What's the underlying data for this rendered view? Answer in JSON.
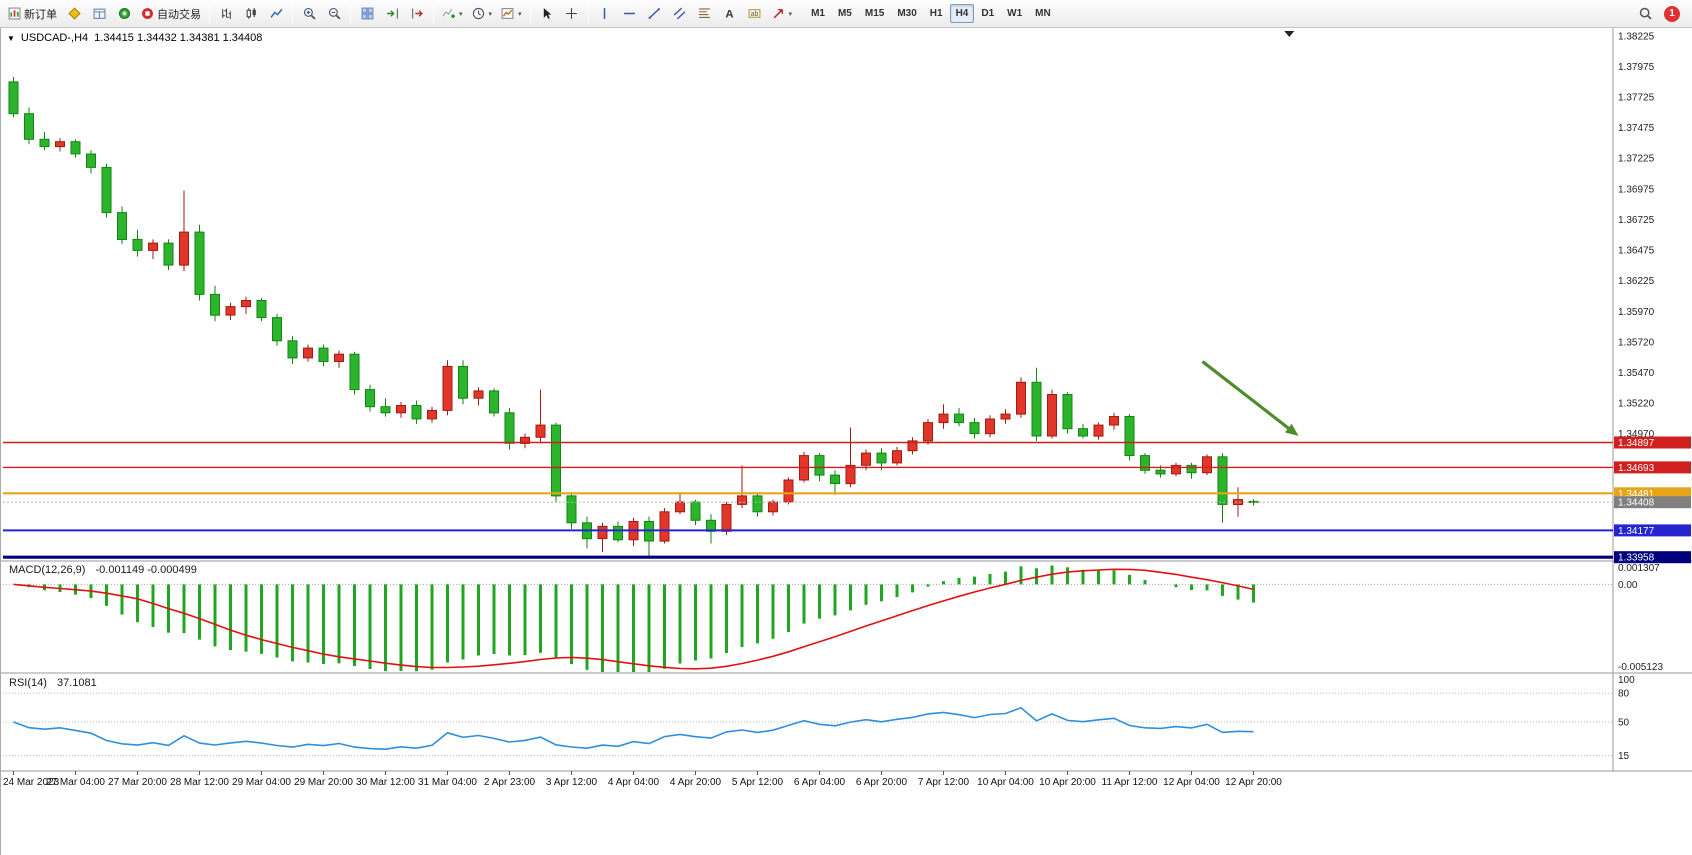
{
  "toolbar": {
    "items": [
      {
        "name": "new-order-button",
        "icon": "new-order",
        "label": "新订单"
      },
      {
        "name": "market-watch-button",
        "icon": "market-watch"
      },
      {
        "name": "data-window-button",
        "icon": "data-window"
      },
      {
        "name": "market-button",
        "icon": "market"
      },
      {
        "name": "autotrading-button",
        "icon": "autotrading",
        "label": "自动交易"
      },
      {
        "type": "sep"
      },
      {
        "name": "bars-button",
        "icon": "bars"
      },
      {
        "name": "candles-button",
        "icon": "candles"
      },
      {
        "name": "line-chart-button",
        "icon": "line-chart"
      },
      {
        "type": "sep"
      },
      {
        "name": "zoom-in-button",
        "icon": "zoom-in"
      },
      {
        "name": "zoom-out-button",
        "icon": "zoom-out"
      },
      {
        "type": "sep"
      },
      {
        "name": "tile-windows-button",
        "icon": "tile-windows"
      },
      {
        "name": "auto-scroll-button",
        "icon": "auto-scroll"
      },
      {
        "name": "chart-shift-button",
        "icon": "chart-shift"
      },
      {
        "type": "sep"
      },
      {
        "name": "indicators-button",
        "icon": "indicators",
        "caret": true
      },
      {
        "name": "periods-button",
        "icon": "periods",
        "caret": true
      },
      {
        "name": "templates-button",
        "icon": "templates",
        "caret": true
      },
      {
        "type": "sep"
      },
      {
        "name": "cursor-button",
        "icon": "cursor"
      },
      {
        "name": "crosshair-button",
        "icon": "crosshair"
      },
      {
        "type": "sep"
      },
      {
        "name": "vertical-line-button",
        "icon": "vline"
      },
      {
        "name": "horizontal-line-button",
        "icon": "hline"
      },
      {
        "name": "trendline-button",
        "icon": "trendline"
      },
      {
        "name": "channel-button",
        "icon": "channel"
      },
      {
        "name": "fibonacci-button",
        "icon": "fibonacci"
      },
      {
        "name": "text-button",
        "icon": "text"
      },
      {
        "name": "text-label-button",
        "icon": "text-label"
      },
      {
        "name": "arrows-button",
        "icon": "arrows",
        "caret": true
      }
    ],
    "timeframes": [
      "M1",
      "M5",
      "M15",
      "M30",
      "H1",
      "H4",
      "D1",
      "W1",
      "MN"
    ],
    "active_timeframe": "H4",
    "notification_count": "1"
  },
  "window": {
    "symbol_title": "USDCAD-,H4",
    "ohlc_text": "1.34415 1.34432 1.34381 1.34408"
  },
  "chart_data": {
    "type": "candlestick",
    "symbol": "USDCAD",
    "period": "H4",
    "price_axis": {
      "top": 1.38275,
      "bottom": 1.33935,
      "ticks": [
        [
          "1.38225",
          1.38225
        ],
        [
          "1.37975",
          1.37975
        ],
        [
          "1.37725",
          1.37725
        ],
        [
          "1.37475",
          1.37475
        ],
        [
          "1.37225",
          1.37225
        ],
        [
          "1.36975",
          1.36975
        ],
        [
          "1.36725",
          1.36725
        ],
        [
          "1.36475",
          1.36475
        ],
        [
          "1.36225",
          1.36225
        ],
        [
          "1.35970",
          1.3597
        ],
        [
          "1.35720",
          1.3572
        ],
        [
          "1.35470",
          1.3547
        ],
        [
          "1.35220",
          1.3522
        ],
        [
          "1.34970",
          1.3497
        ]
      ]
    },
    "levels": [
      {
        "text": "1.34897",
        "value": 1.34897,
        "color": "#cf1f1f",
        "label_bg": "#cf1f1f",
        "w": 1.4
      },
      {
        "text": "1.34693",
        "value": 1.34693,
        "color": "#cf1f1f",
        "label_bg": "#cf1f1f",
        "w": 1.4
      },
      {
        "text": "1.34481",
        "value": 1.34481,
        "color": "#e7a519",
        "label_bg": "#e7a519",
        "w": 2.2
      },
      {
        "text": "1.34408",
        "value": 1.34408,
        "color": "#b4b4b4",
        "label_bg": "#808080",
        "w": 1,
        "dash": "2,2"
      },
      {
        "text": "1.34177",
        "value": 1.34177,
        "color": "#2525cf",
        "label_bg": "#2525cf",
        "w": 2
      },
      {
        "text": "1.33958",
        "value": 1.33958,
        "color": "#00007f",
        "label_bg": "#00007f",
        "w": 3.2
      }
    ],
    "time_labels": [
      "24 Mar 2023",
      "27 Mar 04:00",
      "27 Mar 20:00",
      "28 Mar 12:00",
      "29 Mar 04:00",
      "29 Mar 20:00",
      "30 Mar 12:00",
      "31 Mar 04:00",
      "2 Apr 23:00",
      "3 Apr 12:00",
      "4 Apr 04:00",
      "4 Apr 20:00",
      "5 Apr 12:00",
      "6 Apr 04:00",
      "6 Apr 20:00",
      "7 Apr 12:00",
      "10 Apr 04:00",
      "10 Apr 20:00",
      "11 Apr 12:00",
      "12 Apr 04:00",
      "12 Apr 20:00"
    ],
    "colors": {
      "up": "#e3362a",
      "up_stroke": "#a01b10",
      "down": "#2cb52c",
      "down_stroke": "#118611"
    },
    "candles": [
      [
        1.3785,
        1.3789,
        1.3756,
        1.3759
      ],
      [
        1.3759,
        1.3764,
        1.3734,
        1.3738
      ],
      [
        1.3738,
        1.3744,
        1.3729,
        1.3732
      ],
      [
        1.3732,
        1.3739,
        1.3728,
        1.3736
      ],
      [
        1.3736,
        1.3738,
        1.3723,
        1.3726
      ],
      [
        1.3726,
        1.3729,
        1.371,
        1.3715
      ],
      [
        1.3715,
        1.3718,
        1.3674,
        1.3678
      ],
      [
        1.3678,
        1.3683,
        1.3652,
        1.3656
      ],
      [
        1.3656,
        1.3664,
        1.3642,
        1.3647
      ],
      [
        1.3647,
        1.3656,
        1.364,
        1.3653
      ],
      [
        1.3653,
        1.3656,
        1.3631,
        1.3635
      ],
      [
        1.3635,
        1.3696,
        1.363,
        1.3662
      ],
      [
        1.3662,
        1.3668,
        1.3606,
        1.3611
      ],
      [
        1.3611,
        1.3618,
        1.3589,
        1.3594
      ],
      [
        1.3594,
        1.3604,
        1.359,
        1.3601
      ],
      [
        1.3601,
        1.3609,
        1.3595,
        1.3606
      ],
      [
        1.3606,
        1.3608,
        1.3589,
        1.3592
      ],
      [
        1.3592,
        1.3595,
        1.3569,
        1.3573
      ],
      [
        1.3573,
        1.3577,
        1.3554,
        1.3559
      ],
      [
        1.3559,
        1.357,
        1.3556,
        1.3567
      ],
      [
        1.3567,
        1.357,
        1.3552,
        1.3556
      ],
      [
        1.3556,
        1.3565,
        1.3551,
        1.3562
      ],
      [
        1.3562,
        1.3564,
        1.3529,
        1.3533
      ],
      [
        1.3533,
        1.3537,
        1.3515,
        1.3519
      ],
      [
        1.3519,
        1.3526,
        1.3511,
        1.3514
      ],
      [
        1.3514,
        1.3523,
        1.351,
        1.352
      ],
      [
        1.352,
        1.3524,
        1.3505,
        1.3509
      ],
      [
        1.3509,
        1.3519,
        1.3506,
        1.3516
      ],
      [
        1.3516,
        1.3557,
        1.3512,
        1.3552
      ],
      [
        1.3552,
        1.3557,
        1.3521,
        1.3526
      ],
      [
        1.3526,
        1.3535,
        1.352,
        1.3532
      ],
      [
        1.3532,
        1.3534,
        1.3511,
        1.3514
      ],
      [
        1.3514,
        1.3518,
        1.3484,
        1.3489
      ],
      [
        1.3489,
        1.3497,
        1.3485,
        1.3494
      ],
      [
        1.3494,
        1.3533,
        1.3489,
        1.3504
      ],
      [
        1.3504,
        1.3506,
        1.3441,
        1.3446
      ],
      [
        1.3446,
        1.3448,
        1.3419,
        1.3424
      ],
      [
        1.3424,
        1.3429,
        1.3403,
        1.3411
      ],
      [
        1.3411,
        1.3424,
        1.34,
        1.3421
      ],
      [
        1.3421,
        1.3425,
        1.3408,
        1.341
      ],
      [
        1.341,
        1.3428,
        1.3405,
        1.3425
      ],
      [
        1.3425,
        1.3429,
        1.3397,
        1.3409
      ],
      [
        1.3409,
        1.3436,
        1.3407,
        1.3433
      ],
      [
        1.3433,
        1.3449,
        1.3431,
        1.3441
      ],
      [
        1.3441,
        1.3443,
        1.3422,
        1.3426
      ],
      [
        1.3426,
        1.3431,
        1.3407,
        1.3417
      ],
      [
        1.3417,
        1.3441,
        1.3414,
        1.3439
      ],
      [
        1.3439,
        1.3471,
        1.3436,
        1.3446
      ],
      [
        1.3446,
        1.3448,
        1.3429,
        1.3433
      ],
      [
        1.3433,
        1.3443,
        1.343,
        1.3441
      ],
      [
        1.3441,
        1.3461,
        1.3439,
        1.3459
      ],
      [
        1.3459,
        1.3482,
        1.3457,
        1.3479
      ],
      [
        1.3479,
        1.3481,
        1.3458,
        1.3463
      ],
      [
        1.3463,
        1.3467,
        1.3447,
        1.3456
      ],
      [
        1.3456,
        1.3502,
        1.3453,
        1.3471
      ],
      [
        1.3471,
        1.3484,
        1.3467,
        1.3481
      ],
      [
        1.3481,
        1.3485,
        1.3467,
        1.3473
      ],
      [
        1.3473,
        1.3486,
        1.3471,
        1.3483
      ],
      [
        1.3483,
        1.3494,
        1.348,
        1.3491
      ],
      [
        1.3491,
        1.3509,
        1.3488,
        1.3506
      ],
      [
        1.3506,
        1.3521,
        1.3501,
        1.3513
      ],
      [
        1.3513,
        1.3518,
        1.3503,
        1.3506
      ],
      [
        1.3506,
        1.351,
        1.3493,
        1.3497
      ],
      [
        1.3497,
        1.3512,
        1.3494,
        1.3509
      ],
      [
        1.3509,
        1.3517,
        1.3505,
        1.3513
      ],
      [
        1.3513,
        1.3543,
        1.351,
        1.3539
      ],
      [
        1.3539,
        1.3551,
        1.3491,
        1.3495
      ],
      [
        1.3495,
        1.3533,
        1.3493,
        1.3529
      ],
      [
        1.3529,
        1.3531,
        1.3497,
        1.3501
      ],
      [
        1.3501,
        1.3505,
        1.3493,
        1.3495
      ],
      [
        1.3495,
        1.3506,
        1.3492,
        1.3504
      ],
      [
        1.3504,
        1.3514,
        1.35,
        1.3511
      ],
      [
        1.3511,
        1.3513,
        1.3475,
        1.3479
      ],
      [
        1.3479,
        1.3481,
        1.3464,
        1.3467
      ],
      [
        1.3467,
        1.3471,
        1.3461,
        1.3464
      ],
      [
        1.3464,
        1.3473,
        1.3462,
        1.3471
      ],
      [
        1.3471,
        1.3473,
        1.346,
        1.3465
      ],
      [
        1.3465,
        1.348,
        1.3463,
        1.3478
      ],
      [
        1.3478,
        1.3481,
        1.3424,
        1.3439
      ],
      [
        1.3439,
        1.3453,
        1.3429,
        1.3443
      ],
      [
        1.34415,
        1.34432,
        1.34381,
        1.34408
      ]
    ],
    "arrow": {
      "from_bar": 77,
      "from_price": 1.3556,
      "to_bar": 83.2,
      "to_price": 1.3495,
      "color": "#4e8c2c",
      "width": 3.2
    },
    "scroll_marker_bar": 82.6,
    "macd": {
      "label": "MACD(12,26,9)",
      "values": "-0.001149 -0.000499",
      "fast": 12,
      "slow": 26,
      "signal": 9,
      "max": 0.001307,
      "min": -0.005123,
      "axis": [
        [
          "0.001307",
          0.001307
        ],
        [
          "0.00",
          0
        ],
        [
          "-0.005123",
          -0.005123
        ]
      ],
      "histogram_color": "#21a621",
      "signal_color": "#e21212"
    },
    "rsi": {
      "label": "RSI(14)",
      "value": "37.1081",
      "period": 14,
      "axis": [
        [
          "100",
          100
        ],
        [
          "80",
          80
        ],
        [
          "50",
          50
        ],
        [
          "15",
          15
        ]
      ],
      "levels": [
        80,
        50,
        15
      ],
      "line_color": "#2f8fdf"
    }
  }
}
